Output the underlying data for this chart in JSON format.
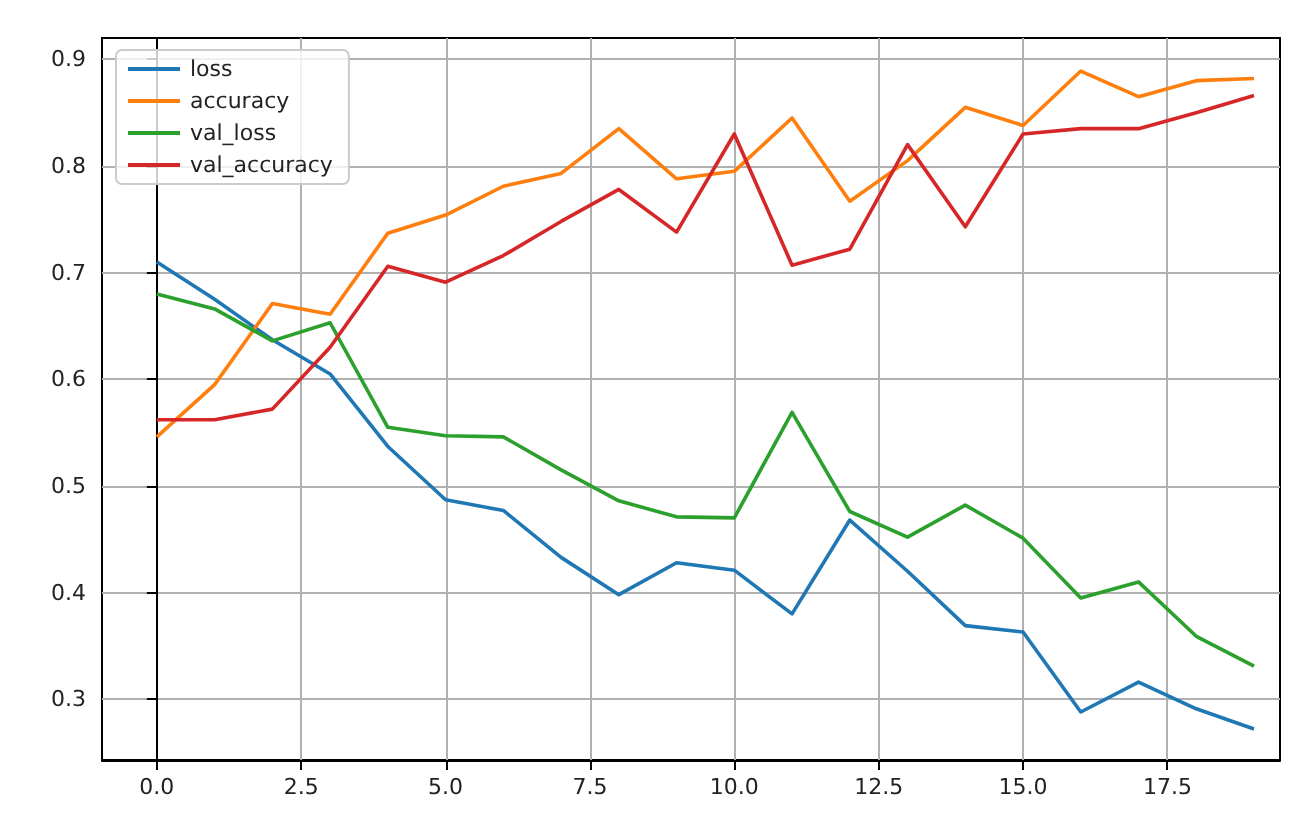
{
  "chart_data": {
    "type": "line",
    "x": [
      0,
      1,
      2,
      3,
      4,
      5,
      6,
      7,
      8,
      9,
      10,
      11,
      12,
      13,
      14,
      15,
      16,
      17,
      18,
      19
    ],
    "series": [
      {
        "name": "loss",
        "color": "#1f77b4",
        "values": [
          0.71,
          0.675,
          0.637,
          0.605,
          0.537,
          0.487,
          0.477,
          0.433,
          0.398,
          0.428,
          0.421,
          0.38,
          0.468,
          0.42,
          0.369,
          0.363,
          0.288,
          0.316,
          0.291,
          0.272
        ]
      },
      {
        "name": "accuracy",
        "color": "#ff7f0e",
        "values": [
          0.546,
          0.595,
          0.671,
          0.661,
          0.737,
          0.754,
          0.781,
          0.793,
          0.835,
          0.788,
          0.795,
          0.845,
          0.767,
          0.805,
          0.855,
          0.838,
          0.889,
          0.865,
          0.88,
          0.882
        ]
      },
      {
        "name": "val_loss",
        "color": "#2ca02c",
        "values": [
          0.68,
          0.666,
          0.636,
          0.653,
          0.555,
          0.547,
          0.546,
          0.515,
          0.486,
          0.471,
          0.47,
          0.569,
          0.476,
          0.452,
          0.482,
          0.451,
          0.395,
          0.41,
          0.359,
          0.331
        ]
      },
      {
        "name": "val_accuracy",
        "color": "#d62728",
        "values": [
          0.562,
          0.562,
          0.572,
          0.63,
          0.706,
          0.691,
          0.716,
          0.748,
          0.778,
          0.738,
          0.83,
          0.707,
          0.722,
          0.82,
          0.743,
          0.83,
          0.835,
          0.835,
          0.85,
          0.866
        ]
      }
    ],
    "xlim": [
      -0.95,
      19.45
    ],
    "xticks": [
      {
        "value": 0,
        "label": "0.0"
      },
      {
        "value": 2.5,
        "label": "2.5"
      },
      {
        "value": 5,
        "label": "5.0"
      },
      {
        "value": 7.5,
        "label": "7.5"
      },
      {
        "value": 10,
        "label": "10.0"
      },
      {
        "value": 12.5,
        "label": "12.5"
      },
      {
        "value": 15,
        "label": "15.0"
      },
      {
        "value": 17.5,
        "label": "17.5"
      }
    ],
    "ylim": [
      0.243,
      0.92
    ],
    "yticks": [
      0.3,
      0.4,
      0.5,
      0.6,
      0.7,
      0.8,
      0.9
    ],
    "grid": true,
    "legend": "top left"
  }
}
